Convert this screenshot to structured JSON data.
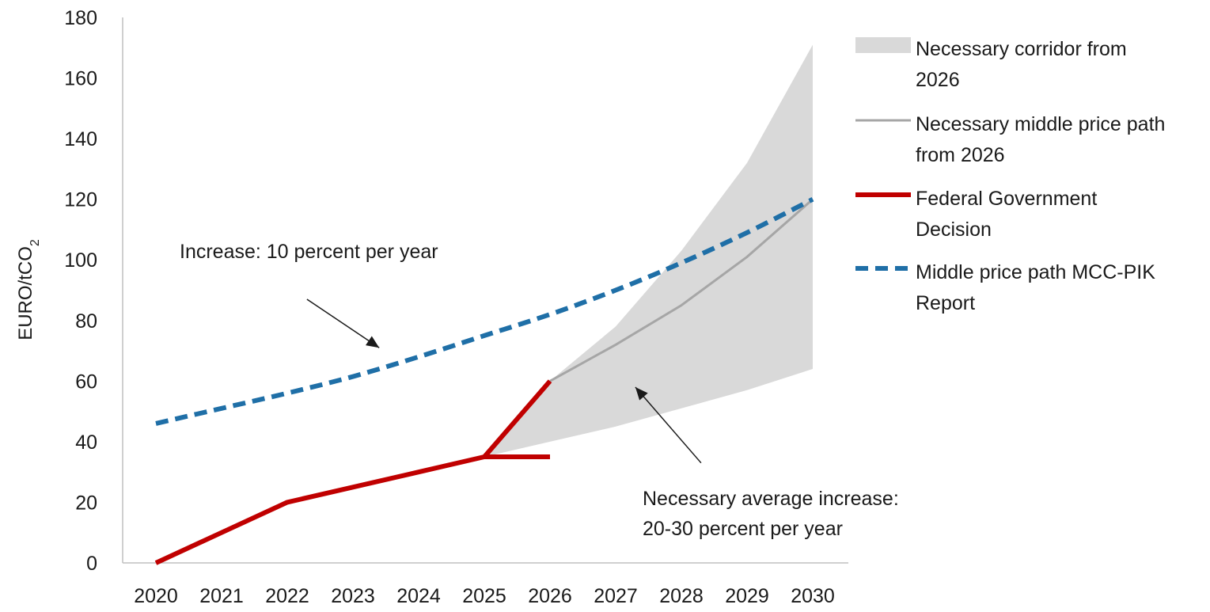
{
  "chart_data": {
    "type": "line",
    "ylabel": "EURO/tCO",
    "ylabel_subscript": "2",
    "ylim": [
      0,
      180
    ],
    "yticks": [
      0,
      20,
      40,
      60,
      80,
      100,
      120,
      140,
      160,
      180
    ],
    "xlim": [
      2020,
      2030
    ],
    "xticks": [
      "2020",
      "2021",
      "2022",
      "2023",
      "2024",
      "2025",
      "2026",
      "2027",
      "2028",
      "2029",
      "2030"
    ],
    "grid": false,
    "legend_position": "right",
    "series": [
      {
        "name": "Necessary corridor from 2026",
        "kind": "band",
        "color": "#d9d9d9",
        "x": [
          2025,
          2026,
          2027,
          2028,
          2029,
          2030
        ],
        "lower": [
          35,
          40,
          45,
          51,
          57,
          64
        ],
        "upper": [
          35,
          60,
          78,
          103,
          132,
          171
        ]
      },
      {
        "name": "Necessary middle price path from 2026",
        "kind": "line",
        "color": "#a6a6a6",
        "style": "solid-thin",
        "x": [
          2026,
          2027,
          2028,
          2029,
          2030
        ],
        "y": [
          60,
          72,
          85,
          101,
          120
        ]
      },
      {
        "name": "Federal Government Decision",
        "kind": "line",
        "color": "#c00000",
        "style": "solid-thick",
        "segments": [
          {
            "x": [
              2020,
              2021,
              2022,
              2023,
              2024,
              2025
            ],
            "y": [
              0,
              10,
              20,
              25,
              30,
              35
            ]
          },
          {
            "x": [
              2025,
              2026
            ],
            "y": [
              35,
              60
            ]
          },
          {
            "x": [
              2025,
              2026
            ],
            "y": [
              35,
              35
            ]
          }
        ]
      },
      {
        "name": "Middle price path MCC-PIK Report",
        "kind": "line",
        "color": "#1f6fa7",
        "style": "dashed-thick",
        "x": [
          2020,
          2021,
          2022,
          2023,
          2024,
          2025,
          2026,
          2027,
          2028,
          2029,
          2030
        ],
        "y": [
          46,
          51,
          56,
          61.5,
          68,
          75,
          82,
          90,
          99,
          109,
          120
        ]
      }
    ],
    "legend": [
      {
        "lines": [
          "Necessary corridor from",
          "2026"
        ],
        "kind": "band",
        "color": "#d9d9d9"
      },
      {
        "lines": [
          "Necessary middle price path",
          "from 2026"
        ],
        "kind": "thin",
        "color": "#a6a6a6"
      },
      {
        "lines": [
          "Federal Government",
          "Decision"
        ],
        "kind": "thick",
        "color": "#c00000"
      },
      {
        "lines": [
          "Middle price path MCC-PIK",
          "Report"
        ],
        "kind": "dashed",
        "color": "#1f6fa7"
      }
    ],
    "annotations": [
      {
        "lines": [
          "Increase: 10 percent per year"
        ],
        "arrow_from": [
          2022.3,
          87
        ],
        "arrow_to": [
          2023.4,
          71
        ]
      },
      {
        "lines": [
          "Necessary average increase:",
          "20-30 percent per year"
        ],
        "arrow_from": [
          2028.3,
          33
        ],
        "arrow_to": [
          2027.3,
          58
        ]
      }
    ]
  }
}
